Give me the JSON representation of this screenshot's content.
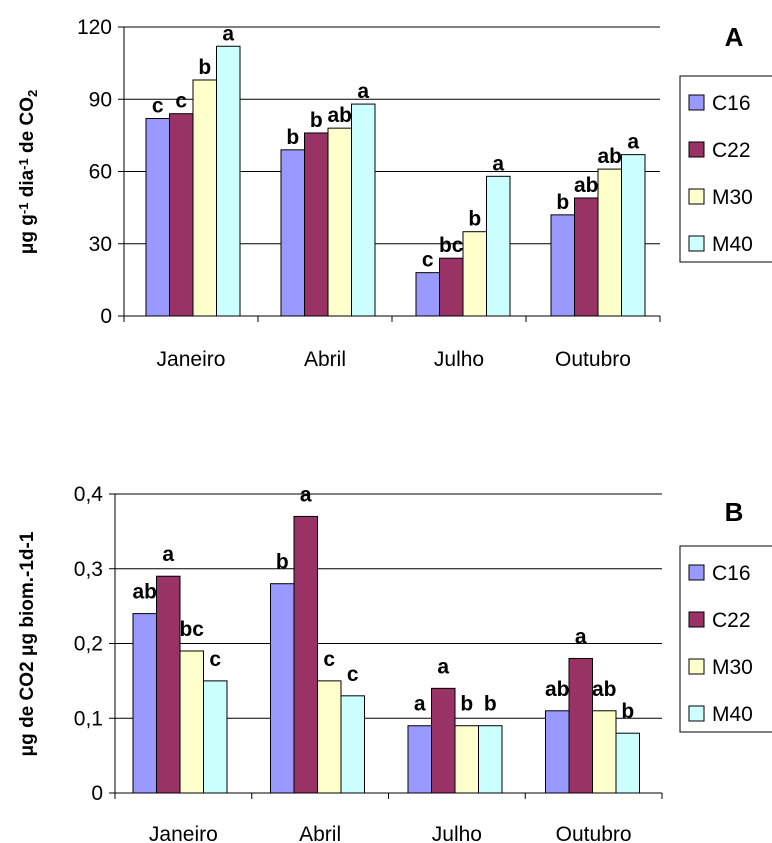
{
  "chart_data": [
    {
      "type": "bar",
      "panel_letter": "A",
      "ylabel_parts": [
        "μg  g",
        "-1",
        " dia",
        "-1",
        " de CO",
        "2"
      ],
      "categories": [
        "Janeiro",
        "Abril",
        "Julho",
        "Outubro"
      ],
      "yticks": [
        "0",
        "30",
        "60",
        "90",
        "120"
      ],
      "ylim": [
        0,
        120
      ],
      "grid": true,
      "legend_position": "right",
      "series": [
        {
          "name": "C16",
          "color": "#9999ff",
          "values": [
            82,
            69,
            18,
            42
          ],
          "labels": [
            "c",
            "b",
            "c",
            "b"
          ]
        },
        {
          "name": "C22",
          "color": "#993366",
          "values": [
            84,
            76,
            24,
            49
          ],
          "labels": [
            "c",
            "b",
            "bc",
            "ab"
          ]
        },
        {
          "name": "M30",
          "color": "#ffffcc",
          "values": [
            98,
            78,
            35,
            61
          ],
          "labels": [
            "b",
            "ab",
            "b",
            "ab"
          ]
        },
        {
          "name": "M40",
          "color": "#ccffff",
          "values": [
            112,
            88,
            58,
            67
          ],
          "labels": [
            "a",
            "a",
            "a",
            "a"
          ]
        }
      ]
    },
    {
      "type": "bar",
      "panel_letter": "B",
      "ylabel": "μg de CO2  μg biom.-1d-1",
      "categories": [
        "Janeiro",
        "Abril",
        "Julho",
        "Outubro"
      ],
      "yticks": [
        "0",
        "0,1",
        "0,2",
        "0,3",
        "0,4"
      ],
      "ylim": [
        0,
        0.4
      ],
      "grid": true,
      "legend_position": "right",
      "series": [
        {
          "name": "C16",
          "color": "#9999ff",
          "values": [
            0.24,
            0.28,
            0.09,
            0.11
          ],
          "labels": [
            "ab",
            "b",
            "a",
            "ab"
          ]
        },
        {
          "name": "C22",
          "color": "#993366",
          "values": [
            0.29,
            0.37,
            0.14,
            0.18
          ],
          "labels": [
            "a",
            "a",
            "a",
            "a"
          ]
        },
        {
          "name": "M30",
          "color": "#ffffcc",
          "values": [
            0.19,
            0.15,
            0.09,
            0.11
          ],
          "labels": [
            "bc",
            "c",
            "b",
            "ab"
          ]
        },
        {
          "name": "M40",
          "color": "#ccffff",
          "values": [
            0.15,
            0.13,
            0.09,
            0.08
          ],
          "labels": [
            "c",
            "c",
            "b",
            "b"
          ]
        }
      ]
    }
  ]
}
